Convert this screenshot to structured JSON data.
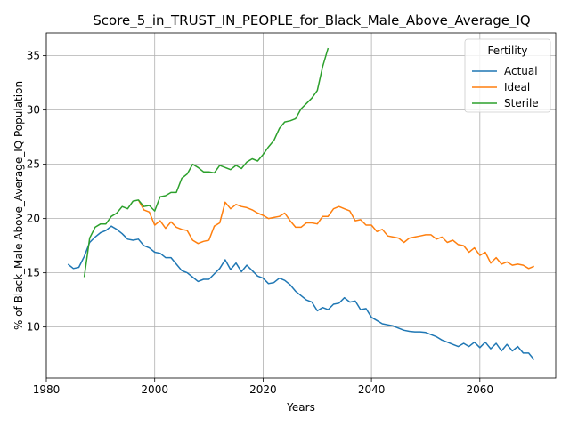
{
  "chart_data": {
    "type": "line",
    "title": "Score_5_in_TRUST_IN_PEOPLE_for_Black_Male_Above_Average_IQ",
    "xlabel": "Years",
    "ylabel": "% of Black_Male Above_Average_IQ Population",
    "xlim": [
      1980,
      2074
    ],
    "ylim": [
      5.3,
      37.1
    ],
    "xticks": [
      1980,
      2000,
      2020,
      2040,
      2060
    ],
    "yticks": [
      10,
      15,
      20,
      25,
      30,
      35
    ],
    "grid": true,
    "legend": {
      "title": "Fertility",
      "position": "top-right"
    },
    "series": [
      {
        "name": "Actual",
        "color": "#1f77b4",
        "x": [
          1984,
          1985,
          1986,
          1987,
          1988,
          1989,
          1990,
          1991,
          1992,
          1993,
          1994,
          1995,
          1996,
          1997,
          1998,
          1999,
          2000,
          2001,
          2002,
          2003,
          2004,
          2005,
          2006,
          2007,
          2008,
          2009,
          2010,
          2011,
          2012,
          2013,
          2014,
          2015,
          2016,
          2017,
          2018,
          2019,
          2020,
          2021,
          2022,
          2023,
          2024,
          2025,
          2026,
          2027,
          2028,
          2029,
          2030,
          2031,
          2032,
          2033,
          2034,
          2035,
          2036,
          2037,
          2038,
          2039,
          2040,
          2041,
          2042,
          2043,
          2044,
          2045,
          2046,
          2047,
          2048,
          2049,
          2050,
          2051,
          2052,
          2053,
          2054,
          2055,
          2056,
          2057,
          2058,
          2059,
          2060,
          2061,
          2062,
          2063,
          2064,
          2065,
          2066,
          2067,
          2068,
          2069,
          2070
        ],
        "values": [
          15.8,
          15.4,
          15.5,
          16.5,
          17.8,
          18.3,
          18.7,
          18.9,
          19.3,
          19.0,
          18.6,
          18.1,
          18.0,
          18.1,
          17.5,
          17.3,
          16.9,
          16.8,
          16.4,
          16.4,
          15.8,
          15.2,
          15.0,
          14.6,
          14.2,
          14.4,
          14.4,
          14.9,
          15.4,
          16.2,
          15.3,
          15.9,
          15.1,
          15.7,
          15.2,
          14.7,
          14.5,
          14.0,
          14.1,
          14.5,
          14.3,
          13.9,
          13.3,
          12.9,
          12.5,
          12.3,
          11.5,
          11.8,
          11.6,
          12.1,
          12.2,
          12.7,
          12.3,
          12.4,
          11.6,
          11.7,
          10.9,
          10.6,
          10.3,
          10.2,
          10.1,
          9.9,
          9.7,
          9.6,
          9.55,
          9.55,
          9.5,
          9.3,
          9.1,
          8.8,
          8.6,
          8.4,
          8.2,
          8.5,
          8.2,
          8.6,
          8.1,
          8.6,
          8.0,
          8.5,
          7.8,
          8.4,
          7.8,
          8.2,
          7.6,
          7.6,
          7.0
        ]
      },
      {
        "name": "Ideal",
        "color": "#ff7f0e",
        "x": [
          1997,
          1998,
          1999,
          2000,
          2001,
          2002,
          2003,
          2004,
          2005,
          2006,
          2007,
          2008,
          2009,
          2010,
          2011,
          2012,
          2013,
          2014,
          2015,
          2016,
          2017,
          2018,
          2019,
          2020,
          2021,
          2022,
          2023,
          2024,
          2025,
          2026,
          2027,
          2028,
          2029,
          2030,
          2031,
          2032,
          2033,
          2034,
          2035,
          2036,
          2037,
          2038,
          2039,
          2040,
          2041,
          2042,
          2043,
          2044,
          2045,
          2046,
          2047,
          2048,
          2049,
          2050,
          2051,
          2052,
          2053,
          2054,
          2055,
          2056,
          2057,
          2058,
          2059,
          2060,
          2061,
          2062,
          2063,
          2064,
          2065,
          2066,
          2067,
          2068,
          2069,
          2070
        ],
        "values": [
          21.7,
          20.8,
          20.6,
          19.4,
          19.8,
          19.1,
          19.7,
          19.2,
          19.0,
          18.9,
          18.0,
          17.7,
          17.9,
          18.0,
          19.3,
          19.6,
          21.5,
          20.9,
          21.3,
          21.1,
          21.0,
          20.8,
          20.5,
          20.3,
          20.0,
          20.1,
          20.2,
          20.5,
          19.8,
          19.2,
          19.2,
          19.6,
          19.6,
          19.5,
          20.2,
          20.2,
          20.9,
          21.1,
          20.9,
          20.7,
          19.8,
          19.9,
          19.4,
          19.4,
          18.8,
          19.0,
          18.4,
          18.3,
          18.2,
          17.8,
          18.2,
          18.3,
          18.4,
          18.5,
          18.5,
          18.1,
          18.3,
          17.8,
          18.0,
          17.6,
          17.5,
          16.9,
          17.3,
          16.6,
          16.9,
          15.9,
          16.4,
          15.8,
          16.0,
          15.7,
          15.8,
          15.7,
          15.4,
          15.6
        ]
      },
      {
        "name": "Sterile",
        "color": "#2ca02c",
        "x": [
          1987,
          1988,
          1989,
          1990,
          1991,
          1992,
          1993,
          1994,
          1995,
          1996,
          1997,
          1998,
          1999,
          2000,
          2001,
          2002,
          2003,
          2004,
          2005,
          2006,
          2007,
          2008,
          2009,
          2010,
          2011,
          2012,
          2013,
          2014,
          2015,
          2016,
          2017,
          2018,
          2019,
          2020,
          2021,
          2022,
          2023,
          2024,
          2025,
          2026,
          2027,
          2028,
          2029,
          2030,
          2031,
          2032
        ],
        "values": [
          14.6,
          18.2,
          19.2,
          19.5,
          19.5,
          20.2,
          20.5,
          21.1,
          20.9,
          21.6,
          21.7,
          21.1,
          21.2,
          20.7,
          22.0,
          22.1,
          22.4,
          22.4,
          23.7,
          24.1,
          25.0,
          24.7,
          24.3,
          24.3,
          24.2,
          24.9,
          24.7,
          24.5,
          24.9,
          24.6,
          25.2,
          25.5,
          25.3,
          25.9,
          26.6,
          27.2,
          28.3,
          28.9,
          29.0,
          29.2,
          30.1,
          30.6,
          31.1,
          31.8,
          34.0,
          35.7
        ]
      }
    ]
  }
}
